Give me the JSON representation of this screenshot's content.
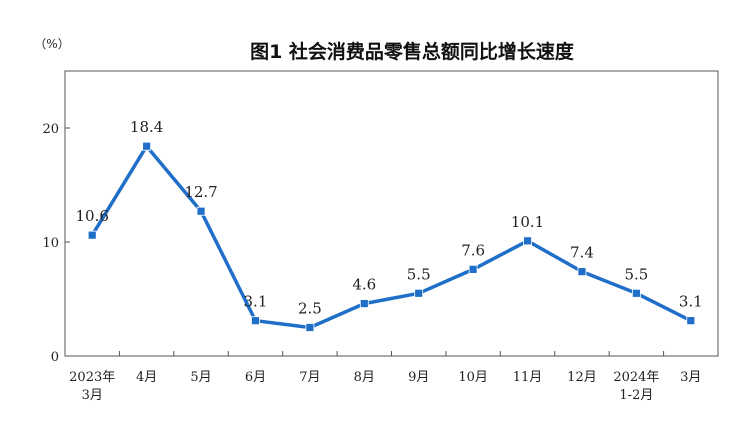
{
  "chart_data": {
    "type": "line",
    "title": "图1 社会消费品零售总额同比增长速度",
    "ylabel": "（%）",
    "xlabel": "",
    "ylim": [
      0,
      25
    ],
    "yticks": [
      0,
      10,
      20
    ],
    "grid": false,
    "categories": [
      [
        "2023年",
        "3月"
      ],
      [
        "4月"
      ],
      [
        "5月"
      ],
      [
        "6月"
      ],
      [
        "7月"
      ],
      [
        "8月"
      ],
      [
        "9月"
      ],
      [
        "10月"
      ],
      [
        "11月"
      ],
      [
        "12月"
      ],
      [
        "2024年",
        "1-2月"
      ],
      [
        "3月"
      ]
    ],
    "series": [
      {
        "values": [
          10.6,
          18.4,
          12.7,
          3.1,
          2.5,
          4.6,
          5.5,
          7.6,
          10.1,
          7.4,
          5.5,
          3.1
        ],
        "labels": [
          "10.6",
          "18.4",
          "12.7",
          "3.1",
          "2.5",
          "4.6",
          "5.5",
          "7.6",
          "10.1",
          "7.4",
          "5.5",
          "3.1"
        ],
        "color": "#1f6fc9"
      }
    ]
  }
}
